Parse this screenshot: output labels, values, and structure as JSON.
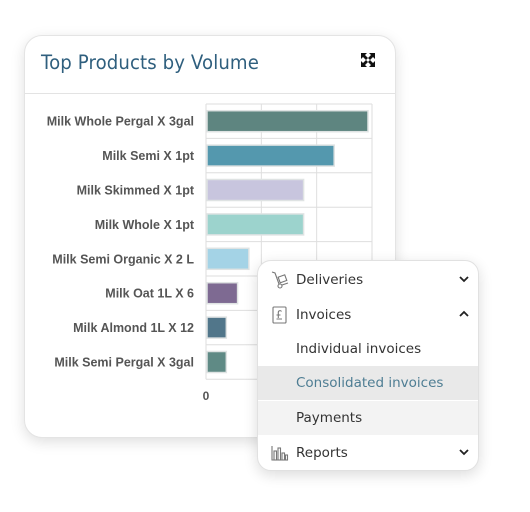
{
  "card": {
    "title": "Top Products by Volume",
    "expand_icon": "expand-arrows-icon"
  },
  "chart_data": {
    "type": "bar",
    "orientation": "horizontal",
    "title": "Top Products by Volume",
    "categories": [
      "Milk Whole Pergal X 3gal",
      "Milk Semi X 1pt",
      "Milk Skimmed X 1pt",
      "Milk Whole X 1pt",
      "Milk Semi Organic X 2 L",
      "Milk Oat 1L X 6",
      "Milk Almond 1L X 12",
      "Milk Semi Pergal X 3gal"
    ],
    "values": [
      100,
      79,
      60,
      60,
      26,
      19,
      12,
      12
    ],
    "colors": [
      "#5e8580",
      "#5498ae",
      "#c8c5de",
      "#9cd3cd",
      "#a4d3e6",
      "#7e6a92",
      "#51768a",
      "#5f8a85"
    ],
    "xticks": [
      "0"
    ],
    "grid": true
  },
  "menu": {
    "items": [
      {
        "label": "Deliveries",
        "icon": "hand-truck-icon",
        "chevron": "chevron-down-icon"
      },
      {
        "label": "Invoices",
        "icon": "pound-document-icon",
        "chevron": "chevron-up-icon"
      },
      {
        "label": "Individual invoices"
      },
      {
        "label": "Consolidated invoices"
      },
      {
        "label": "Payments"
      },
      {
        "label": "Reports",
        "icon": "bar-chart-icon",
        "chevron": "chevron-down-icon"
      }
    ]
  }
}
